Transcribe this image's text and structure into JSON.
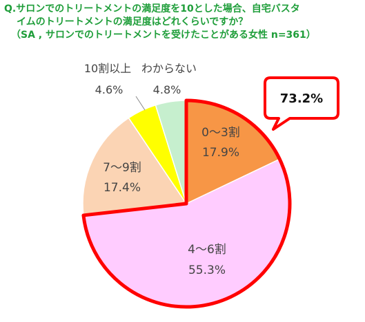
{
  "question": {
    "line1": "Q.サロンでのトリートメントの満足度を10とした場合、自宅バスタ",
    "line2": "イムのトリートメントの満足度はどれくらいですか？",
    "line3": "（SA , サロンでのトリートメントを受けたことがある女性 n=361）"
  },
  "callout": {
    "text": "73.2%"
  },
  "colors": {
    "slice_0_3": "#f79646",
    "slice_4_6": "#ffccff",
    "slice_7_9": "#fbd4b4",
    "slice_10": "#ffff00",
    "slice_unknown": "#c6efce",
    "highlight": "#ff0000"
  },
  "chart_data": {
    "type": "pie",
    "start": "12 o'clock, clockwise",
    "slices": [
      {
        "label": "0～3割",
        "value": 17.9,
        "value_text": "17.9%"
      },
      {
        "label": "4～6割",
        "value": 55.3,
        "value_text": "55.3%"
      },
      {
        "label": "7～9割",
        "value": 17.4,
        "value_text": "17.4%"
      },
      {
        "label": "10割以上",
        "value": 4.6,
        "value_text": "4.6%"
      },
      {
        "label": "わからない",
        "value": 4.8,
        "value_text": "4.8%"
      }
    ],
    "highlighted": [
      "0～3割",
      "4～6割"
    ]
  }
}
